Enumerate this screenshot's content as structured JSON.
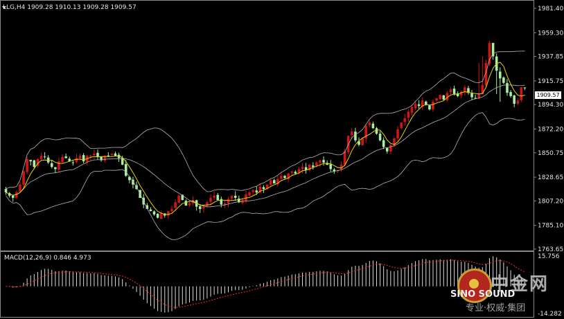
{
  "header": {
    "symbol_info": "LLG,H4  1909.28 1910.13 1909.28 1909.57"
  },
  "macd": {
    "label": "MACD(12,26,9) 0.846 4.973",
    "axis_top": "15.756",
    "axis_bottom": "-14.282"
  },
  "price_axis": {
    "ticks": [
      "1981.40",
      "1959.30",
      "1937.85",
      "1915.75",
      "1894.30",
      "1872.20",
      "1850.75",
      "1828.65",
      "1807.20",
      "1785.10",
      "1763.65"
    ],
    "current_price": "1909.57"
  },
  "watermark": {
    "cn": "中金网",
    "en": "SINO SOUND",
    "sub": "专业·权威·集团"
  },
  "colors": {
    "up": "#d11616",
    "down": "#a8f0a0",
    "ma": "#e6d400",
    "ma2": "#ff2a2a",
    "bands": "#b4b4b4",
    "macd": "#dddddd",
    "signal": "#ff2a2a",
    "background": "#000000"
  },
  "chart_data": {
    "type": "candlestick",
    "timeframe": "H4",
    "ylim": [
      1763.65,
      1981.4
    ],
    "closes": [
      1815,
      1812,
      1810,
      1815,
      1822,
      1834,
      1845,
      1843,
      1838,
      1845,
      1848,
      1847,
      1842,
      1838,
      1836,
      1843,
      1847,
      1846,
      1843,
      1842,
      1846,
      1848,
      1843,
      1848,
      1848,
      1850,
      1847,
      1844,
      1848,
      1848,
      1850,
      1848,
      1846,
      1840,
      1830,
      1826,
      1822,
      1818,
      1810,
      1804,
      1800,
      1798,
      1795,
      1792,
      1796,
      1794,
      1798,
      1800,
      1806,
      1812,
      1808,
      1803,
      1805,
      1808,
      1802,
      1800,
      1802,
      1806,
      1810,
      1812,
      1808,
      1804,
      1805,
      1809,
      1812,
      1810,
      1806,
      1808,
      1813,
      1815,
      1817,
      1815,
      1820,
      1818,
      1822,
      1826,
      1823,
      1827,
      1830,
      1828,
      1832,
      1834,
      1832,
      1836,
      1838,
      1835,
      1840,
      1838,
      1842,
      1844,
      1842,
      1840,
      1836,
      1834,
      1835,
      1840,
      1852,
      1866,
      1870,
      1862,
      1858,
      1864,
      1875,
      1878,
      1873,
      1868,
      1862,
      1856,
      1852,
      1858,
      1864,
      1872,
      1878,
      1882,
      1888,
      1892,
      1895,
      1893,
      1898,
      1894,
      1890,
      1897,
      1900,
      1903,
      1899,
      1905,
      1908,
      1904,
      1902,
      1906,
      1910,
      1905,
      1901,
      1900,
      1904,
      1912,
      1932,
      1950,
      1938,
      1925,
      1918,
      1914,
      1905,
      1902,
      1895,
      1898,
      1910,
      1909.57
    ],
    "macd_last": 0.846,
    "signal_last": 4.973,
    "macd_range": [
      -14.282,
      15.756
    ]
  }
}
